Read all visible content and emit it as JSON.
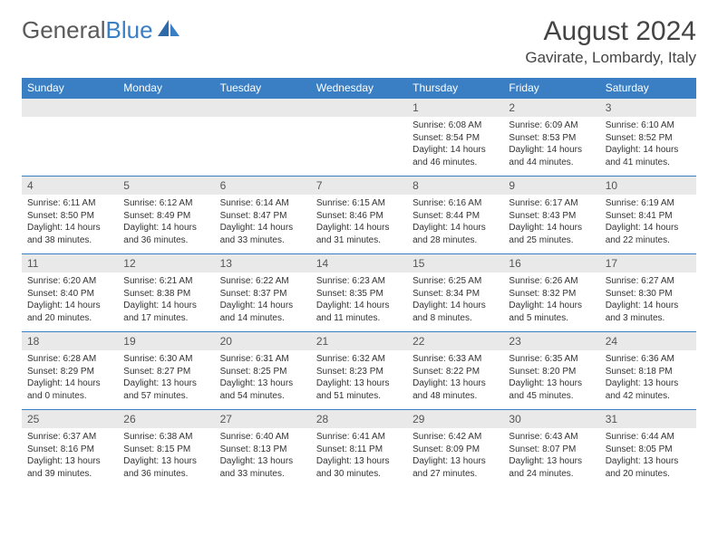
{
  "logo": {
    "text_part1": "General",
    "text_part2": "Blue"
  },
  "title": {
    "month": "August 2024",
    "location": "Gavirate, Lombardy, Italy"
  },
  "colors": {
    "header_bg": "#3a7fc4",
    "header_text": "#ffffff",
    "daynum_bg": "#e9e9e9",
    "border": "#3a7fc4",
    "body_text": "#333333",
    "logo_gray": "#5a5a5a",
    "logo_blue": "#3a7fc4"
  },
  "weekdays": [
    "Sunday",
    "Monday",
    "Tuesday",
    "Wednesday",
    "Thursday",
    "Friday",
    "Saturday"
  ],
  "weeks": [
    {
      "nums": [
        "",
        "",
        "",
        "",
        "1",
        "2",
        "3"
      ],
      "cells": [
        null,
        null,
        null,
        null,
        {
          "sunrise": "Sunrise: 6:08 AM",
          "sunset": "Sunset: 8:54 PM",
          "daylight": "Daylight: 14 hours and 46 minutes."
        },
        {
          "sunrise": "Sunrise: 6:09 AM",
          "sunset": "Sunset: 8:53 PM",
          "daylight": "Daylight: 14 hours and 44 minutes."
        },
        {
          "sunrise": "Sunrise: 6:10 AM",
          "sunset": "Sunset: 8:52 PM",
          "daylight": "Daylight: 14 hours and 41 minutes."
        }
      ]
    },
    {
      "nums": [
        "4",
        "5",
        "6",
        "7",
        "8",
        "9",
        "10"
      ],
      "cells": [
        {
          "sunrise": "Sunrise: 6:11 AM",
          "sunset": "Sunset: 8:50 PM",
          "daylight": "Daylight: 14 hours and 38 minutes."
        },
        {
          "sunrise": "Sunrise: 6:12 AM",
          "sunset": "Sunset: 8:49 PM",
          "daylight": "Daylight: 14 hours and 36 minutes."
        },
        {
          "sunrise": "Sunrise: 6:14 AM",
          "sunset": "Sunset: 8:47 PM",
          "daylight": "Daylight: 14 hours and 33 minutes."
        },
        {
          "sunrise": "Sunrise: 6:15 AM",
          "sunset": "Sunset: 8:46 PM",
          "daylight": "Daylight: 14 hours and 31 minutes."
        },
        {
          "sunrise": "Sunrise: 6:16 AM",
          "sunset": "Sunset: 8:44 PM",
          "daylight": "Daylight: 14 hours and 28 minutes."
        },
        {
          "sunrise": "Sunrise: 6:17 AM",
          "sunset": "Sunset: 8:43 PM",
          "daylight": "Daylight: 14 hours and 25 minutes."
        },
        {
          "sunrise": "Sunrise: 6:19 AM",
          "sunset": "Sunset: 8:41 PM",
          "daylight": "Daylight: 14 hours and 22 minutes."
        }
      ]
    },
    {
      "nums": [
        "11",
        "12",
        "13",
        "14",
        "15",
        "16",
        "17"
      ],
      "cells": [
        {
          "sunrise": "Sunrise: 6:20 AM",
          "sunset": "Sunset: 8:40 PM",
          "daylight": "Daylight: 14 hours and 20 minutes."
        },
        {
          "sunrise": "Sunrise: 6:21 AM",
          "sunset": "Sunset: 8:38 PM",
          "daylight": "Daylight: 14 hours and 17 minutes."
        },
        {
          "sunrise": "Sunrise: 6:22 AM",
          "sunset": "Sunset: 8:37 PM",
          "daylight": "Daylight: 14 hours and 14 minutes."
        },
        {
          "sunrise": "Sunrise: 6:23 AM",
          "sunset": "Sunset: 8:35 PM",
          "daylight": "Daylight: 14 hours and 11 minutes."
        },
        {
          "sunrise": "Sunrise: 6:25 AM",
          "sunset": "Sunset: 8:34 PM",
          "daylight": "Daylight: 14 hours and 8 minutes."
        },
        {
          "sunrise": "Sunrise: 6:26 AM",
          "sunset": "Sunset: 8:32 PM",
          "daylight": "Daylight: 14 hours and 5 minutes."
        },
        {
          "sunrise": "Sunrise: 6:27 AM",
          "sunset": "Sunset: 8:30 PM",
          "daylight": "Daylight: 14 hours and 3 minutes."
        }
      ]
    },
    {
      "nums": [
        "18",
        "19",
        "20",
        "21",
        "22",
        "23",
        "24"
      ],
      "cells": [
        {
          "sunrise": "Sunrise: 6:28 AM",
          "sunset": "Sunset: 8:29 PM",
          "daylight": "Daylight: 14 hours and 0 minutes."
        },
        {
          "sunrise": "Sunrise: 6:30 AM",
          "sunset": "Sunset: 8:27 PM",
          "daylight": "Daylight: 13 hours and 57 minutes."
        },
        {
          "sunrise": "Sunrise: 6:31 AM",
          "sunset": "Sunset: 8:25 PM",
          "daylight": "Daylight: 13 hours and 54 minutes."
        },
        {
          "sunrise": "Sunrise: 6:32 AM",
          "sunset": "Sunset: 8:23 PM",
          "daylight": "Daylight: 13 hours and 51 minutes."
        },
        {
          "sunrise": "Sunrise: 6:33 AM",
          "sunset": "Sunset: 8:22 PM",
          "daylight": "Daylight: 13 hours and 48 minutes."
        },
        {
          "sunrise": "Sunrise: 6:35 AM",
          "sunset": "Sunset: 8:20 PM",
          "daylight": "Daylight: 13 hours and 45 minutes."
        },
        {
          "sunrise": "Sunrise: 6:36 AM",
          "sunset": "Sunset: 8:18 PM",
          "daylight": "Daylight: 13 hours and 42 minutes."
        }
      ]
    },
    {
      "nums": [
        "25",
        "26",
        "27",
        "28",
        "29",
        "30",
        "31"
      ],
      "cells": [
        {
          "sunrise": "Sunrise: 6:37 AM",
          "sunset": "Sunset: 8:16 PM",
          "daylight": "Daylight: 13 hours and 39 minutes."
        },
        {
          "sunrise": "Sunrise: 6:38 AM",
          "sunset": "Sunset: 8:15 PM",
          "daylight": "Daylight: 13 hours and 36 minutes."
        },
        {
          "sunrise": "Sunrise: 6:40 AM",
          "sunset": "Sunset: 8:13 PM",
          "daylight": "Daylight: 13 hours and 33 minutes."
        },
        {
          "sunrise": "Sunrise: 6:41 AM",
          "sunset": "Sunset: 8:11 PM",
          "daylight": "Daylight: 13 hours and 30 minutes."
        },
        {
          "sunrise": "Sunrise: 6:42 AM",
          "sunset": "Sunset: 8:09 PM",
          "daylight": "Daylight: 13 hours and 27 minutes."
        },
        {
          "sunrise": "Sunrise: 6:43 AM",
          "sunset": "Sunset: 8:07 PM",
          "daylight": "Daylight: 13 hours and 24 minutes."
        },
        {
          "sunrise": "Sunrise: 6:44 AM",
          "sunset": "Sunset: 8:05 PM",
          "daylight": "Daylight: 13 hours and 20 minutes."
        }
      ]
    }
  ]
}
